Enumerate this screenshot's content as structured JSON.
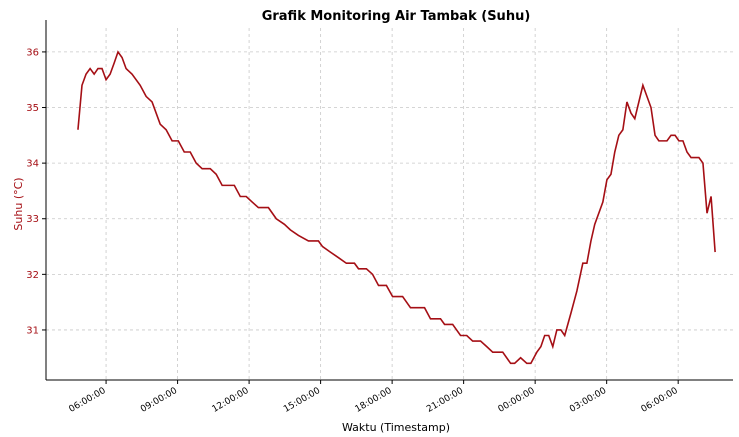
{
  "chart_data": {
    "type": "line",
    "title": "Grafik Monitoring Air Tambak (Suhu)",
    "x_label": "Waktu (Timestamp)",
    "y_label": "Suhu (°C)",
    "grid": true,
    "xlim": [
      3.48,
      32.3
    ],
    "ylim": [
      30.1,
      36.43
    ],
    "xticks": [
      {
        "value": 6,
        "label": "06:00:00"
      },
      {
        "value": 9,
        "label": "09:00:00"
      },
      {
        "value": 12,
        "label": "12:00:00"
      },
      {
        "value": 15,
        "label": "15:00:00"
      },
      {
        "value": 18,
        "label": "18:00:00"
      },
      {
        "value": 21,
        "label": "21:00:00"
      },
      {
        "value": 24,
        "label": "00:00:00"
      },
      {
        "value": 27,
        "label": "03:00:00"
      },
      {
        "value": 30,
        "label": "06:00:00"
      }
    ],
    "yticks": [
      31,
      32,
      33,
      34,
      35,
      36
    ],
    "x": [
      4.82,
      4.99,
      5.16,
      5.33,
      5.5,
      5.66,
      5.83,
      6.0,
      6.17,
      6.34,
      6.5,
      6.67,
      6.84,
      7.09,
      7.43,
      7.68,
      7.93,
      8.27,
      8.52,
      8.77,
      9.03,
      9.28,
      9.53,
      9.78,
      10.03,
      10.37,
      10.62,
      10.87,
      11.38,
      11.63,
      11.88,
      12.13,
      12.39,
      12.81,
      13.14,
      13.48,
      13.73,
      14.07,
      14.49,
      14.91,
      15.08,
      15.41,
      15.75,
      16.08,
      16.42,
      16.59,
      16.92,
      17.18,
      17.43,
      17.76,
      18.02,
      18.44,
      18.77,
      19.36,
      19.61,
      20.03,
      20.2,
      20.54,
      20.87,
      21.13,
      21.38,
      21.71,
      21.97,
      22.22,
      22.64,
      22.97,
      23.14,
      23.39,
      23.65,
      23.82,
      24.07,
      24.24,
      24.4,
      24.57,
      24.74,
      24.91,
      25.08,
      25.24,
      25.5,
      25.75,
      26.0,
      26.17,
      26.34,
      26.5,
      26.84,
      27.01,
      27.18,
      27.34,
      27.51,
      27.68,
      27.85,
      28.02,
      28.18,
      28.52,
      28.86,
      29.03,
      29.19,
      29.53,
      29.7,
      29.87,
      30.03,
      30.2,
      30.37,
      30.54,
      30.87,
      31.04,
      31.21,
      31.38,
      31.55
    ],
    "series": [
      {
        "name": "Suhu",
        "color": "#a50f15",
        "values": [
          34.6,
          35.4,
          35.6,
          35.7,
          35.6,
          35.7,
          35.7,
          35.5,
          35.6,
          35.8,
          36.0,
          35.9,
          35.7,
          35.6,
          35.4,
          35.2,
          35.1,
          34.7,
          34.6,
          34.4,
          34.4,
          34.2,
          34.2,
          34.0,
          33.9,
          33.9,
          33.8,
          33.6,
          33.6,
          33.4,
          33.4,
          33.3,
          33.2,
          33.2,
          33.0,
          32.9,
          32.8,
          32.7,
          32.6,
          32.6,
          32.5,
          32.4,
          32.3,
          32.2,
          32.2,
          32.1,
          32.1,
          32.0,
          31.8,
          31.8,
          31.6,
          31.6,
          31.4,
          31.4,
          31.2,
          31.2,
          31.1,
          31.1,
          30.9,
          30.9,
          30.8,
          30.8,
          30.7,
          30.6,
          30.6,
          30.4,
          30.4,
          30.5,
          30.4,
          30.4,
          30.6,
          30.7,
          30.9,
          30.9,
          30.7,
          31.0,
          31.0,
          30.9,
          31.3,
          31.7,
          32.2,
          32.2,
          32.6,
          32.9,
          33.3,
          33.7,
          33.8,
          34.2,
          34.5,
          34.6,
          35.1,
          34.9,
          34.8,
          35.4,
          35.0,
          34.5,
          34.4,
          34.4,
          34.5,
          34.5,
          34.4,
          34.4,
          34.2,
          34.1,
          34.1,
          34.0,
          33.1,
          33.4,
          32.4
        ]
      }
    ],
    "tick_color": "#a50f15"
  }
}
